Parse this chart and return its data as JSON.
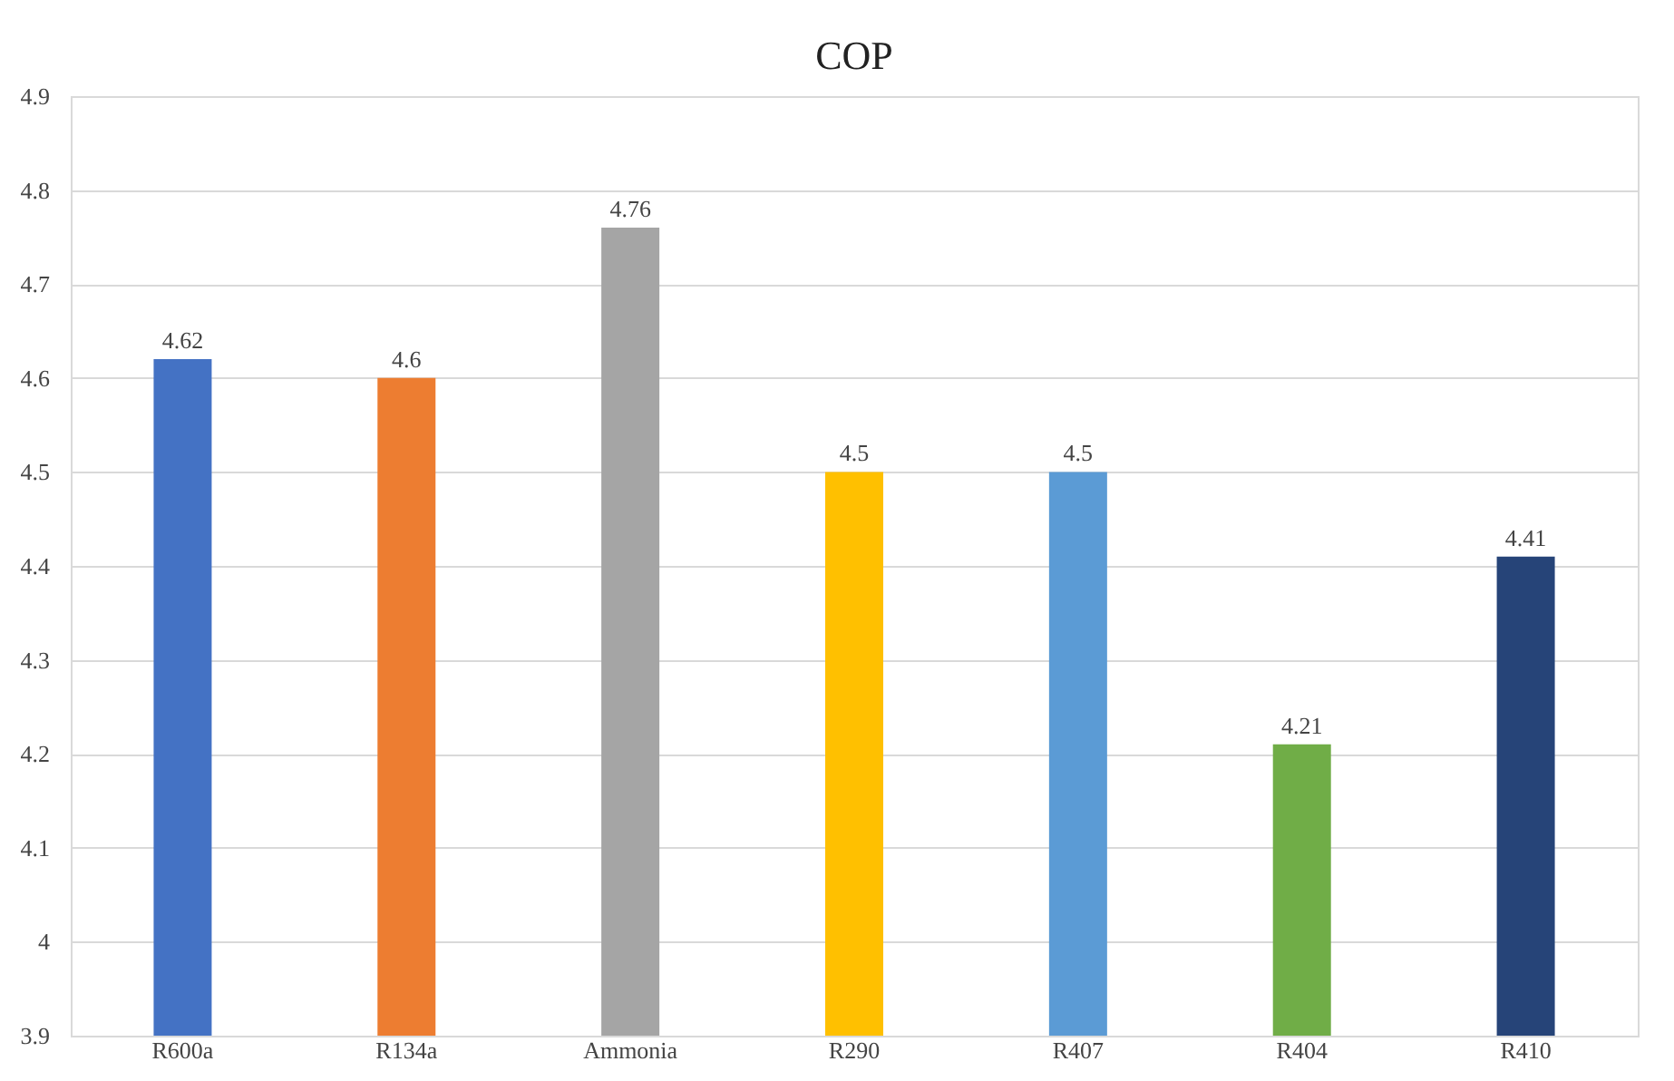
{
  "chart_data": {
    "type": "bar",
    "title": "COP",
    "categories": [
      "R600a",
      "R134a",
      "Ammonia",
      "R290",
      "R407",
      "R404",
      "R410"
    ],
    "values": [
      4.62,
      4.6,
      4.76,
      4.5,
      4.5,
      4.21,
      4.41
    ],
    "colors": [
      "#4472c4",
      "#ed7d31",
      "#a5a5a5",
      "#ffc000",
      "#5b9bd5",
      "#70ad47",
      "#264478"
    ],
    "ylim": [
      3.9,
      4.9
    ],
    "yticks": [
      3.9,
      4,
      4.1,
      4.2,
      4.3,
      4.4,
      4.5,
      4.6,
      4.7,
      4.8,
      4.9
    ],
    "grid": "y",
    "data_labels": true,
    "legend": false
  }
}
